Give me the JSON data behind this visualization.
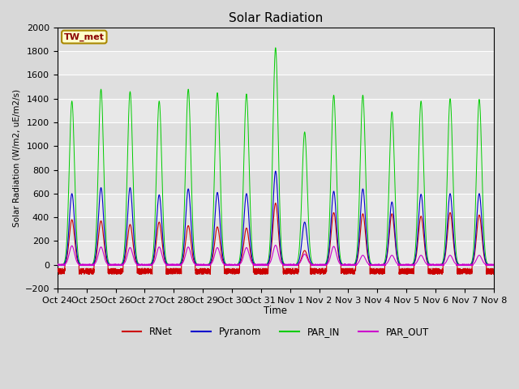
{
  "title": "Solar Radiation",
  "ylabel": "Solar Radiation (W/m2, uE/m2/s)",
  "xlabel": "Time",
  "ylim": [
    -200,
    2000
  ],
  "yticks": [
    -200,
    0,
    200,
    400,
    600,
    800,
    1000,
    1200,
    1400,
    1600,
    1800,
    2000
  ],
  "x_tick_labels": [
    "Oct 24",
    "Oct 25",
    "Oct 26",
    "Oct 27",
    "Oct 28",
    "Oct 29",
    "Oct 30",
    "Oct 31",
    "Nov 1",
    "Nov 2",
    "Nov 3",
    "Nov 4",
    "Nov 5",
    "Nov 6",
    "Nov 7",
    "Nov 8"
  ],
  "colors": {
    "RNet": "#cc0000",
    "Pyranom": "#0000cc",
    "PAR_IN": "#00cc00",
    "PAR_OUT": "#cc00cc"
  },
  "bg_color": "#d8d8d8",
  "plot_bg": "#e8e8e8",
  "grid_color": "#ffffff",
  "annotation_text": "TW_met",
  "annotation_bg": "#ffffcc",
  "annotation_border": "#aa8800",
  "legend_items": [
    "RNet",
    "Pyranom",
    "PAR_IN",
    "PAR_OUT"
  ]
}
